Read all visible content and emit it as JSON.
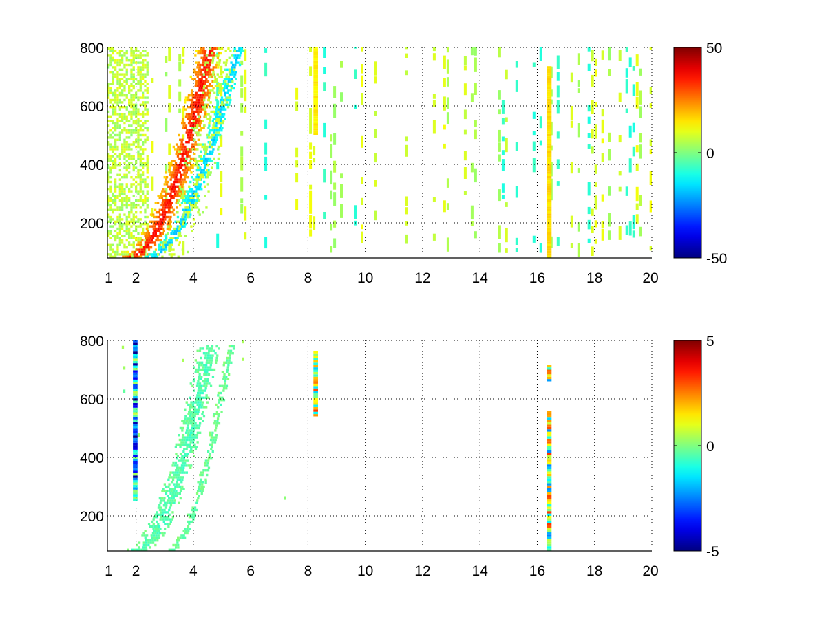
{
  "figure": {
    "background": "#ffffff"
  },
  "chart_data": [
    {
      "type": "heatmap",
      "title": "",
      "xlabel": "",
      "ylabel": "",
      "xlim": [
        1,
        20
      ],
      "ylim": [
        80,
        800
      ],
      "grid": true,
      "x_ticks": [
        "1",
        "2",
        "4",
        "6",
        "8",
        "10",
        "12",
        "14",
        "16",
        "18",
        "20"
      ],
      "y_ticks": [
        "200",
        "400",
        "600",
        "800"
      ],
      "colorbar": {
        "colormap": "jet",
        "min": -50,
        "max": 50,
        "ticks": [
          "50",
          "0",
          "-50"
        ]
      },
      "features": [
        {
          "kind": "curve",
          "x0": 1.8,
          "y0": 80,
          "x1": 4.55,
          "y1": 800,
          "value": 38,
          "bend": 0.55,
          "width": 0.45,
          "density": 0.9
        },
        {
          "kind": "curve",
          "x0": 2.5,
          "y0": 80,
          "x1": 5.55,
          "y1": 800,
          "value": -18,
          "bend": 0.6,
          "width": 0.28,
          "density": 0.8
        },
        {
          "kind": "curve",
          "x0": 3.0,
          "y0": 80,
          "x1": 5.0,
          "y1": 800,
          "value": 8,
          "bend": 0.55,
          "width": 0.6,
          "density": 0.3
        },
        {
          "kind": "column",
          "x": 8.25,
          "y0": 500,
          "y1": 800,
          "value": 14
        },
        {
          "kind": "column",
          "x": 16.4,
          "y0": 80,
          "y1": 730,
          "value": 16
        }
      ],
      "noise": {
        "low_x_band": [
          1,
          2.4
        ],
        "low_x_value": 6,
        "scatter_values": [
          -8,
          4,
          8,
          10
        ]
      }
    },
    {
      "type": "heatmap",
      "title": "",
      "xlabel": "",
      "ylabel": "",
      "xlim": [
        1,
        20
      ],
      "ylim": [
        80,
        800
      ],
      "grid": true,
      "x_ticks": [
        "1",
        "2",
        "4",
        "6",
        "8",
        "10",
        "12",
        "14",
        "16",
        "18",
        "20"
      ],
      "y_ticks": [
        "200",
        "400",
        "600",
        "800"
      ],
      "colorbar": {
        "colormap": "jet",
        "min": -5,
        "max": 5,
        "ticks": [
          "5",
          "0",
          "-5"
        ]
      },
      "features": [
        {
          "kind": "curve",
          "x0": 2.0,
          "y0": 80,
          "x1": 4.55,
          "y1": 780,
          "value": -0.5,
          "bend": 0.55,
          "width": 0.4,
          "density": 0.85
        },
        {
          "kind": "curve",
          "x0": 3.2,
          "y0": 80,
          "x1": 5.3,
          "y1": 780,
          "value": -0.3,
          "bend": 0.6,
          "width": 0.15,
          "density": 0.7
        },
        {
          "kind": "column",
          "x": 1.95,
          "y0": 250,
          "y1": 800,
          "value": -2
        },
        {
          "kind": "column",
          "x": 8.25,
          "y0": 540,
          "y1": 760,
          "value": 1
        },
        {
          "kind": "column",
          "x": 16.4,
          "y0": 80,
          "y1": 560,
          "value": 0.5
        },
        {
          "kind": "column",
          "x": 16.4,
          "y0": 660,
          "y1": 710,
          "value": 0.5
        }
      ],
      "noise": {
        "low_x_band": [
          1,
          1
        ],
        "low_x_value": 0,
        "scatter_values": [
          3,
          -3,
          4
        ]
      }
    }
  ]
}
